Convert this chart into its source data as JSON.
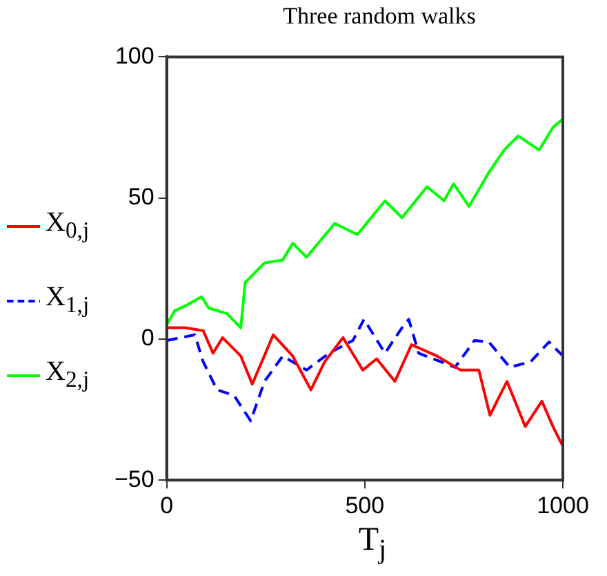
{
  "chart_data": {
    "type": "line",
    "title": "Three random walks",
    "xlabel": "T$_{j}$",
    "marker": "none",
    "legend": "left",
    "grid": false,
    "xlim": [
      0,
      1000
    ],
    "xticks": [
      0,
      500,
      1000
    ],
    "ylim": [
      -50,
      100
    ],
    "yticks": [
      -50,
      0,
      50,
      100
    ],
    "series": [
      {
        "name": "X$_{0,j}$",
        "color": "#ff0000",
        "line_style": "solid",
        "x": [
          0,
          46,
          92,
          117,
          141,
          187,
          216,
          269,
          318,
          364,
          399,
          445,
          495,
          530,
          576,
          618,
          682,
          742,
          788,
          816,
          859,
          905,
          947,
          975,
          1000
        ],
        "values": [
          4,
          4,
          3,
          -5,
          0.5,
          -6,
          -16,
          1.5,
          -6,
          -18,
          -8,
          0.5,
          -11,
          -7,
          -15,
          -2,
          -6,
          -11,
          -11,
          -27,
          -15,
          -31,
          -22,
          -31,
          -38
        ]
      },
      {
        "name": "X$_{1,j}$",
        "color": "#0000ff",
        "line_style": "dashed",
        "x": [
          0,
          71,
          92,
          127,
          170,
          212,
          247,
          293,
          353,
          410,
          470,
          498,
          551,
          594,
          611,
          636,
          728,
          777,
          813,
          866,
          919,
          965,
          1000
        ],
        "values": [
          -0.5,
          1.5,
          -8,
          -18,
          -20,
          -29,
          -15,
          -6,
          -11,
          -5,
          -0.5,
          7,
          -5,
          4,
          7,
          -5,
          -10,
          -0.5,
          -1,
          -10,
          -8,
          -1,
          -6
        ]
      },
      {
        "name": "X$_{2,j}$",
        "color": "#00ff00",
        "line_style": "solid",
        "x": [
          0,
          20,
          50,
          88,
          106,
          152,
          187,
          198,
          247,
          293,
          318,
          353,
          424,
          481,
          551,
          594,
          657,
          700,
          724,
          763,
          788,
          813,
          852,
          887,
          940,
          975,
          1000
        ],
        "values": [
          5,
          10,
          12,
          15,
          11,
          9,
          4,
          20,
          27,
          28,
          34,
          29,
          41,
          37,
          49,
          43,
          54,
          49,
          55,
          47,
          53,
          59,
          67,
          72,
          67,
          75,
          78
        ]
      }
    ]
  }
}
